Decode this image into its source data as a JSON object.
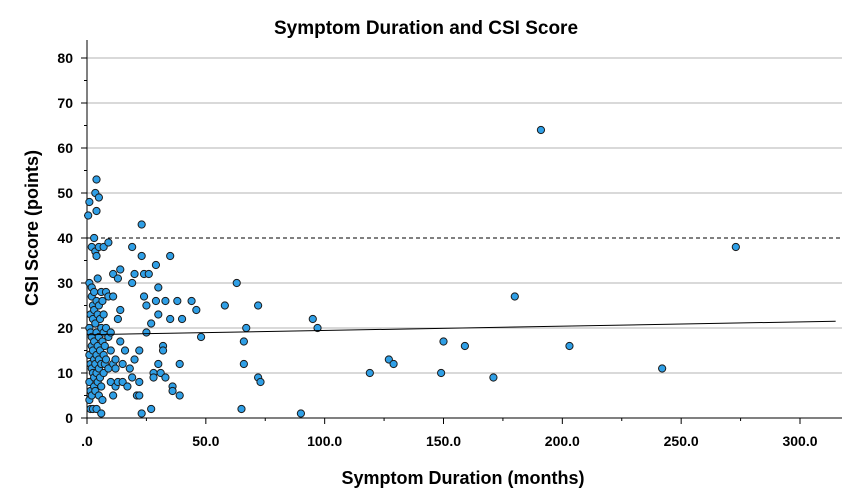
{
  "chart_data": {
    "type": "scatter",
    "title": "Symptom Duration and CSI Score",
    "xlabel": "Symptom Duration (months)",
    "ylabel": "CSI Score (points)",
    "xlim": [
      0,
      315
    ],
    "ylim": [
      0,
      84
    ],
    "x_ticks": [
      ".0",
      "50.0",
      "100.0",
      "150.0",
      "200.0",
      "250.0",
      "300.0"
    ],
    "y_ticks": [
      "0",
      "10",
      "20",
      "30",
      "40",
      "50",
      "60",
      "70",
      "80"
    ],
    "grid": true,
    "reference_line": {
      "y": 40,
      "style": "dashed"
    },
    "fit_line": {
      "x": [
        0,
        315
      ],
      "y": [
        18.5,
        21.5
      ]
    },
    "marker_color": "#2f9fe6",
    "points": [
      [
        0.5,
        45
      ],
      [
        1,
        48
      ],
      [
        1,
        30
      ],
      [
        1,
        20
      ],
      [
        1,
        14
      ],
      [
        1,
        8
      ],
      [
        1,
        4
      ],
      [
        1.5,
        23
      ],
      [
        1.5,
        19
      ],
      [
        1.5,
        12
      ],
      [
        1.5,
        6
      ],
      [
        1.5,
        2
      ],
      [
        2,
        38
      ],
      [
        2,
        29
      ],
      [
        2,
        27
      ],
      [
        2,
        18
      ],
      [
        2,
        16
      ],
      [
        2,
        11
      ],
      [
        2,
        5
      ],
      [
        2.5,
        25
      ],
      [
        2.5,
        22
      ],
      [
        2.5,
        15
      ],
      [
        2.5,
        10
      ],
      [
        2.5,
        2
      ],
      [
        3,
        40
      ],
      [
        3,
        28
      ],
      [
        3,
        24
      ],
      [
        3,
        17
      ],
      [
        3,
        13
      ],
      [
        3,
        9
      ],
      [
        3,
        7
      ],
      [
        3.5,
        50
      ],
      [
        3.5,
        37
      ],
      [
        3.5,
        21
      ],
      [
        3.5,
        12
      ],
      [
        3.5,
        6
      ],
      [
        4,
        53
      ],
      [
        4,
        46
      ],
      [
        4,
        36
      ],
      [
        4,
        26
      ],
      [
        4,
        19
      ],
      [
        4,
        14
      ],
      [
        4,
        10
      ],
      [
        4,
        2
      ],
      [
        4.5,
        31
      ],
      [
        4.5,
        23
      ],
      [
        4.5,
        16
      ],
      [
        4.5,
        8
      ],
      [
        5,
        49
      ],
      [
        5,
        38
      ],
      [
        5,
        25
      ],
      [
        5,
        18
      ],
      [
        5,
        13
      ],
      [
        5,
        11
      ],
      [
        5,
        5
      ],
      [
        5.5,
        22
      ],
      [
        5.5,
        15
      ],
      [
        5.5,
        9
      ],
      [
        6,
        28
      ],
      [
        6,
        20
      ],
      [
        6,
        12
      ],
      [
        6,
        7
      ],
      [
        6,
        1
      ],
      [
        6.5,
        26
      ],
      [
        6.5,
        17
      ],
      [
        6.5,
        4
      ],
      [
        7,
        38
      ],
      [
        7,
        23
      ],
      [
        7,
        19
      ],
      [
        7,
        14
      ],
      [
        7,
        10
      ],
      [
        7.5,
        16
      ],
      [
        7.5,
        12
      ],
      [
        8,
        28
      ],
      [
        8,
        20
      ],
      [
        8,
        13
      ],
      [
        9,
        39
      ],
      [
        9,
        27
      ],
      [
        9,
        18
      ],
      [
        9,
        11
      ],
      [
        10,
        19
      ],
      [
        10,
        15
      ],
      [
        10,
        8
      ],
      [
        11,
        32
      ],
      [
        11,
        27
      ],
      [
        11,
        12
      ],
      [
        11,
        5
      ],
      [
        12,
        13
      ],
      [
        12,
        11
      ],
      [
        12,
        7
      ],
      [
        13,
        31
      ],
      [
        13,
        22
      ],
      [
        13,
        8
      ],
      [
        14,
        33
      ],
      [
        14,
        24
      ],
      [
        14,
        17
      ],
      [
        15,
        8
      ],
      [
        15,
        12
      ],
      [
        16,
        15
      ],
      [
        17,
        7
      ],
      [
        18,
        11
      ],
      [
        19,
        38
      ],
      [
        19,
        30
      ],
      [
        19,
        9
      ],
      [
        20,
        32
      ],
      [
        20,
        13
      ],
      [
        21,
        5
      ],
      [
        22,
        15
      ],
      [
        22,
        5
      ],
      [
        22,
        8
      ],
      [
        23,
        43
      ],
      [
        23,
        36
      ],
      [
        23,
        1
      ],
      [
        24,
        32
      ],
      [
        24,
        27
      ],
      [
        25,
        25
      ],
      [
        25,
        19
      ],
      [
        26,
        32
      ],
      [
        27,
        21
      ],
      [
        27,
        2
      ],
      [
        28,
        10
      ],
      [
        28,
        9
      ],
      [
        29,
        34
      ],
      [
        29,
        26
      ],
      [
        30,
        29
      ],
      [
        30,
        23
      ],
      [
        30,
        12
      ],
      [
        31,
        10
      ],
      [
        32,
        16
      ],
      [
        32,
        15
      ],
      [
        33,
        26
      ],
      [
        33,
        9
      ],
      [
        35,
        36
      ],
      [
        35,
        22
      ],
      [
        36,
        7
      ],
      [
        36,
        6
      ],
      [
        38,
        26
      ],
      [
        39,
        12
      ],
      [
        39,
        5
      ],
      [
        40,
        22
      ],
      [
        44,
        26
      ],
      [
        46,
        24
      ],
      [
        48,
        18
      ],
      [
        58,
        25
      ],
      [
        63,
        30
      ],
      [
        65,
        2
      ],
      [
        66,
        17
      ],
      [
        66,
        12
      ],
      [
        67,
        20
      ],
      [
        72,
        25
      ],
      [
        72,
        9
      ],
      [
        73,
        8
      ],
      [
        90,
        1
      ],
      [
        95,
        22
      ],
      [
        97,
        20
      ],
      [
        119,
        10
      ],
      [
        127,
        13
      ],
      [
        129,
        12
      ],
      [
        149,
        10
      ],
      [
        150,
        17
      ],
      [
        159,
        16
      ],
      [
        171,
        9
      ],
      [
        180,
        27
      ],
      [
        191,
        64
      ],
      [
        203,
        16
      ],
      [
        242,
        11
      ],
      [
        273,
        38
      ]
    ]
  }
}
